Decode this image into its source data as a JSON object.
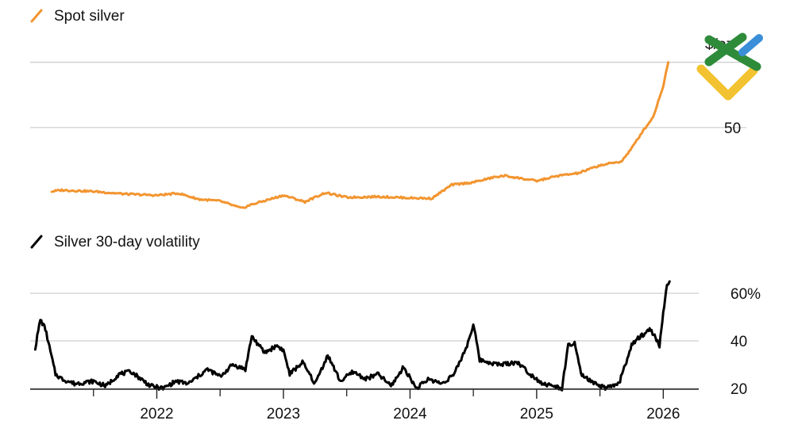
{
  "colors": {
    "silver_line": "#f29530",
    "volatility_line": "#000000",
    "grid": "#cfcfcf",
    "logo_green": "#2e8b3a",
    "logo_blue": "#3a8fd8",
    "logo_yellow": "#f2c230"
  },
  "chart_data": [
    {
      "type": "line",
      "title": "Spot silver",
      "unit_label": "$/oz",
      "ylim": [
        22,
        77
      ],
      "yticks": [
        {
          "value": 50,
          "label": "50"
        }
      ],
      "grid_values": [
        50,
        75
      ],
      "x": [
        2021.17,
        2021.25,
        2021.5,
        2021.75,
        2022.0,
        2022.17,
        2022.33,
        2022.5,
        2022.67,
        2022.75,
        2023.0,
        2023.17,
        2023.33,
        2023.5,
        2023.75,
        2024.0,
        2024.17,
        2024.33,
        2024.5,
        2024.67,
        2024.75,
        2025.0,
        2025.17,
        2025.33,
        2025.5,
        2025.67,
        2025.75,
        2025.83,
        2025.92,
        2026.0,
        2026.04
      ],
      "y": [
        25.5,
        26.0,
        25.5,
        24.5,
        24.0,
        24.8,
        22.5,
        21.8,
        19.0,
        20.5,
        24.0,
        21.5,
        25.0,
        23.2,
        23.5,
        23.0,
        22.8,
        28.0,
        29.0,
        31.0,
        31.5,
        29.5,
        31.5,
        32.5,
        35.5,
        37.0,
        42.0,
        48.0,
        54.0,
        66.0,
        75.0
      ],
      "series_name": "Spot silver"
    },
    {
      "type": "line",
      "title": "Silver 30-day volatility",
      "ylim": [
        18,
        66
      ],
      "yticks": [
        {
          "value": 20,
          "label": "20"
        },
        {
          "value": 40,
          "label": "40"
        },
        {
          "value": 60,
          "label": "60%"
        }
      ],
      "grid_values": [
        20,
        40,
        60
      ],
      "x": [
        2021.04,
        2021.08,
        2021.12,
        2021.2,
        2021.25,
        2021.35,
        2021.5,
        2021.6,
        2021.7,
        2021.8,
        2021.95,
        2022.05,
        2022.15,
        2022.25,
        2022.4,
        2022.5,
        2022.6,
        2022.7,
        2022.75,
        2022.85,
        2022.95,
        2023.0,
        2023.05,
        2023.15,
        2023.25,
        2023.35,
        2023.45,
        2023.55,
        2023.65,
        2023.75,
        2023.85,
        2023.95,
        2024.05,
        2024.15,
        2024.25,
        2024.35,
        2024.45,
        2024.5,
        2024.55,
        2024.7,
        2024.85,
        2024.95,
        2025.05,
        2025.2,
        2025.25,
        2025.3,
        2025.35,
        2025.45,
        2025.55,
        2025.65,
        2025.75,
        2025.8,
        2025.9,
        2025.97,
        2026.0,
        2026.03,
        2026.05
      ],
      "y": [
        37.0,
        49.0,
        45.0,
        26.0,
        24.0,
        22.0,
        23.0,
        21.0,
        26.0,
        27.0,
        21.0,
        20.0,
        23.0,
        22.0,
        28.0,
        25.0,
        30.0,
        28.0,
        42.0,
        35.0,
        38.0,
        36.0,
        26.0,
        31.0,
        22.0,
        34.0,
        23.0,
        27.0,
        24.0,
        26.0,
        21.0,
        29.0,
        20.0,
        24.0,
        22.0,
        26.0,
        38.0,
        47.0,
        32.0,
        30.0,
        31.0,
        26.0,
        22.0,
        20.0,
        38.0,
        39.0,
        26.0,
        22.0,
        20.0,
        22.0,
        38.0,
        41.0,
        45.0,
        38.0,
        52.0,
        63.0,
        65.0
      ],
      "series_name": "Silver 30-day volatility"
    }
  ],
  "x_axis": {
    "xlim": [
      2021.0,
      2026.28
    ],
    "minor_ticks": [
      2021.5,
      2022.5,
      2023.5,
      2024.5,
      2025.5
    ],
    "year_ticks": [
      {
        "value": 2022.0,
        "label": "2022"
      },
      {
        "value": 2023.0,
        "label": "2023"
      },
      {
        "value": 2024.0,
        "label": "2024"
      },
      {
        "value": 2025.0,
        "label": "2025"
      },
      {
        "value": 2026.0,
        "label": "2026"
      }
    ]
  },
  "logo": {
    "icon": "chevron-arrows-logo-icon"
  }
}
